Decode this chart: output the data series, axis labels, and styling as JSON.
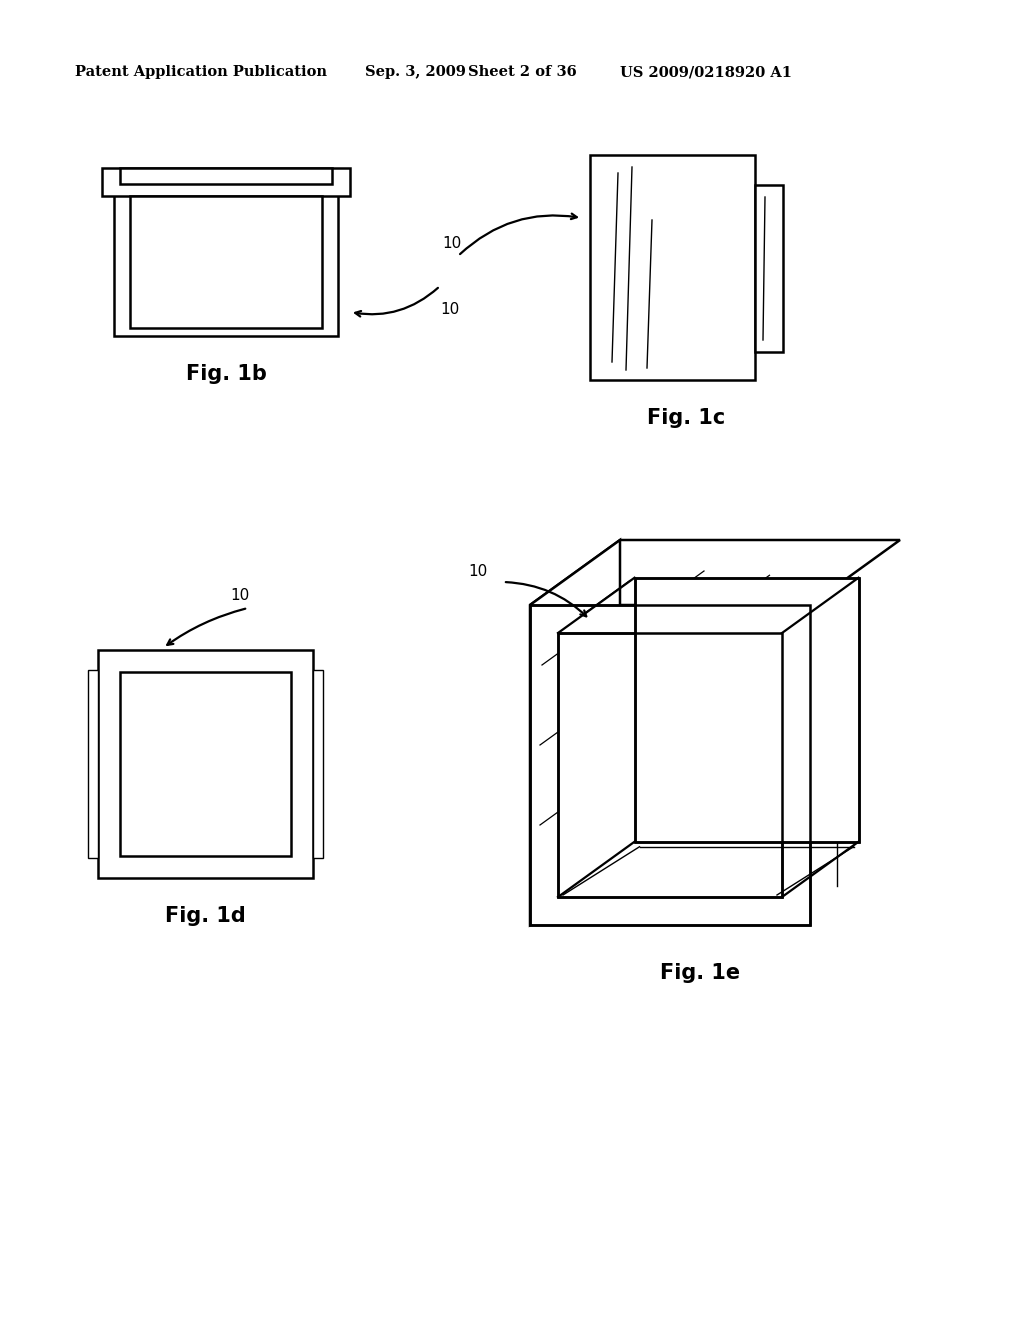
{
  "background_color": "#ffffff",
  "header_text": "Patent Application Publication",
  "header_date": "Sep. 3, 2009",
  "header_sheet": "Sheet 2 of 36",
  "header_patent": "US 2009/0218920 A1",
  "fig1b_label": "Fig. 1b",
  "fig1c_label": "Fig. 1c",
  "fig1d_label": "Fig. 1d",
  "fig1e_label": "Fig. 1e",
  "label_10": "10",
  "line_color": "#000000",
  "line_width": 1.8,
  "font_size_header": 10.5,
  "font_size_fig": 15,
  "font_size_label": 11
}
